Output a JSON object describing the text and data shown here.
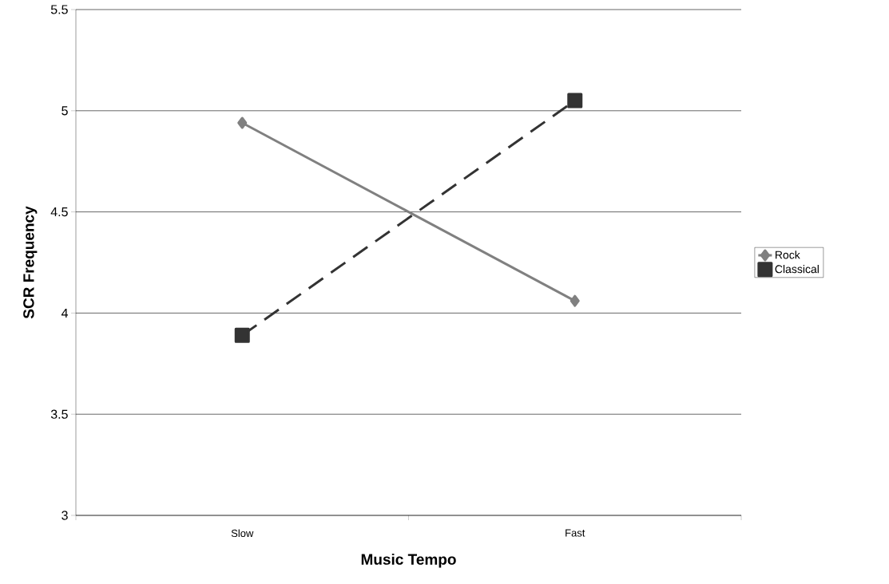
{
  "chart_data": {
    "type": "line",
    "xlabel": "Music Tempo",
    "ylabel": "SCR Frequency",
    "categories": [
      "Slow",
      "Fast"
    ],
    "series": [
      {
        "name": "Rock",
        "color": "#808080",
        "values": [
          4.94,
          4.06
        ],
        "marker": "diamond",
        "line_style": "solid"
      },
      {
        "name": "Classical",
        "color": "#333333",
        "values": [
          3.89,
          5.05
        ],
        "marker": "square",
        "line_style": "dashed"
      }
    ],
    "ylim": [
      3,
      5.5
    ],
    "yticks": [
      3,
      3.5,
      4,
      4.5,
      5,
      5.5
    ],
    "grid": "y",
    "legend": "right"
  }
}
